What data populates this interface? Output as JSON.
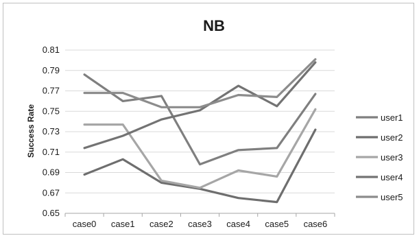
{
  "chart_data": {
    "type": "line",
    "title": "NB",
    "xlabel": "",
    "ylabel": "Success Rate",
    "categories": [
      "case0",
      "case1",
      "case2",
      "case3",
      "case4",
      "case5",
      "case6"
    ],
    "ylim": [
      0.65,
      0.81
    ],
    "yticks": [
      "0.65",
      "0.67",
      "0.69",
      "0.71",
      "0.73",
      "0.75",
      "0.77",
      "0.79",
      "0.81"
    ],
    "grid": "horizontal",
    "legend": "right",
    "series": [
      {
        "name": "user1",
        "color": "#7f7f7f",
        "values": [
          0.786,
          0.76,
          0.765,
          0.698,
          0.712,
          0.714,
          0.767
        ]
      },
      {
        "name": "user2",
        "color": "#6e6e6e",
        "values": [
          0.688,
          0.703,
          0.68,
          0.674,
          0.665,
          0.661,
          0.732
        ]
      },
      {
        "name": "user3",
        "color": "#a6a6a6",
        "values": [
          0.737,
          0.737,
          0.682,
          0.675,
          0.692,
          0.686,
          0.752
        ]
      },
      {
        "name": "user4",
        "color": "#737373",
        "values": [
          0.714,
          0.726,
          0.742,
          0.751,
          0.775,
          0.755,
          0.798
        ]
      },
      {
        "name": "user5",
        "color": "#8c8c8c",
        "values": [
          0.768,
          0.768,
          0.754,
          0.754,
          0.766,
          0.764,
          0.801
        ]
      }
    ]
  }
}
